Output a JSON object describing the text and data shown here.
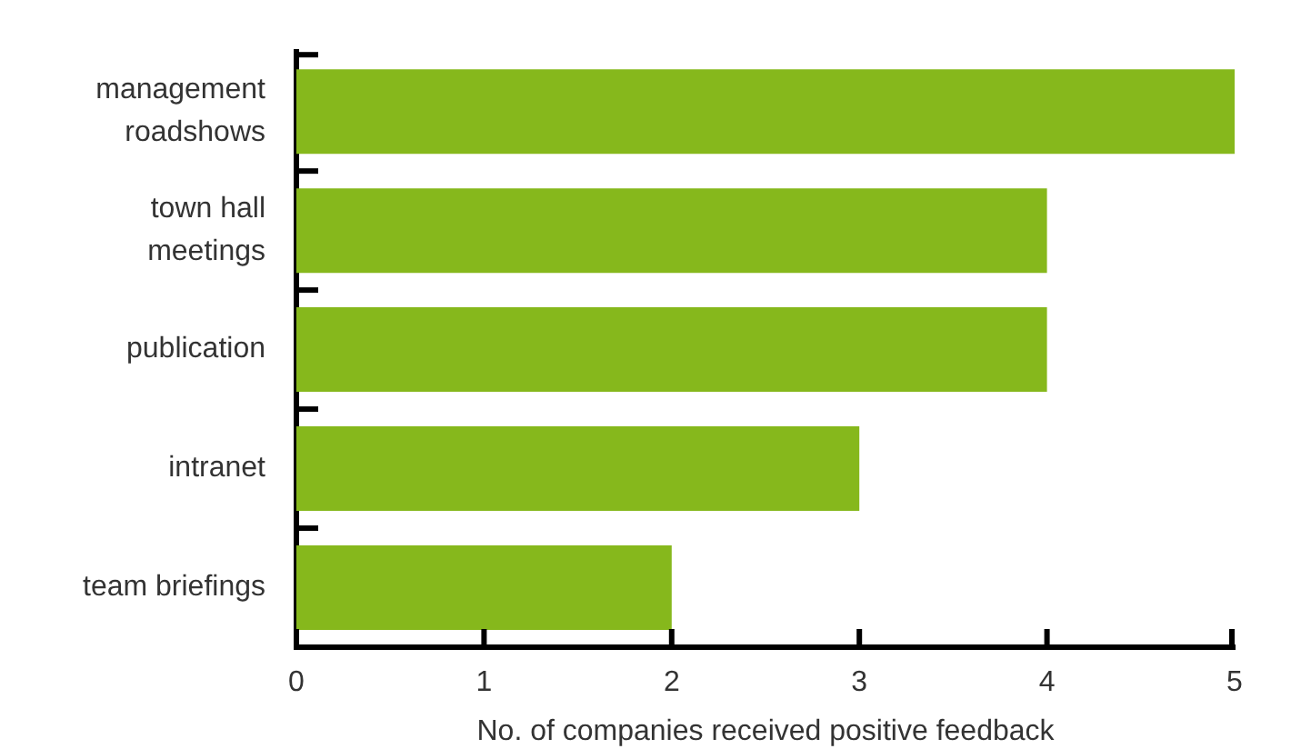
{
  "chart_data": {
    "type": "bar",
    "orientation": "horizontal",
    "xlabel": "No. of companies received positive feedback",
    "categories": [
      "management roadshows",
      "town hall meetings",
      "publication",
      "intranet",
      "team briefings"
    ],
    "values": [
      5,
      4,
      4,
      3,
      2
    ],
    "color": "#86b81c",
    "xlim": [
      0,
      5
    ],
    "xticks": [
      0,
      1,
      2,
      3,
      4,
      5
    ]
  }
}
